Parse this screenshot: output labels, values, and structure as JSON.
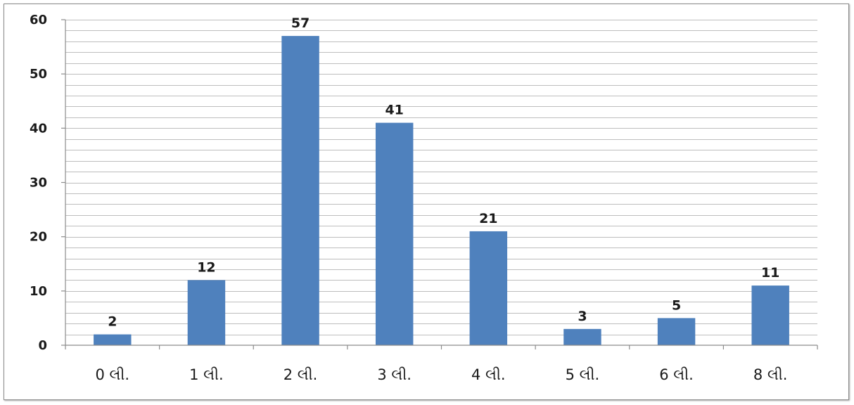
{
  "chart_data": {
    "type": "bar",
    "categories": [
      "0 લી.",
      "1 લી.",
      "2 લી.",
      "3 લી.",
      "4 લી.",
      "5 લી.",
      "6 લી.",
      "8 લી."
    ],
    "values": [
      2,
      12,
      57,
      41,
      21,
      3,
      5,
      11
    ],
    "data_labels": [
      "2",
      "12",
      "57",
      "41",
      "21",
      "3",
      "5",
      "11"
    ],
    "ylim": [
      0,
      60
    ],
    "y_ticks": [
      "0",
      "10",
      "20",
      "30",
      "40",
      "50",
      "60"
    ],
    "y_tick_values": [
      0,
      10,
      20,
      30,
      40,
      50,
      60
    ],
    "minor_gridline_step": 2,
    "grid": true,
    "legend": "none",
    "bar_color": "#4f81bd",
    "grid_color": "#bdbdbd"
  }
}
